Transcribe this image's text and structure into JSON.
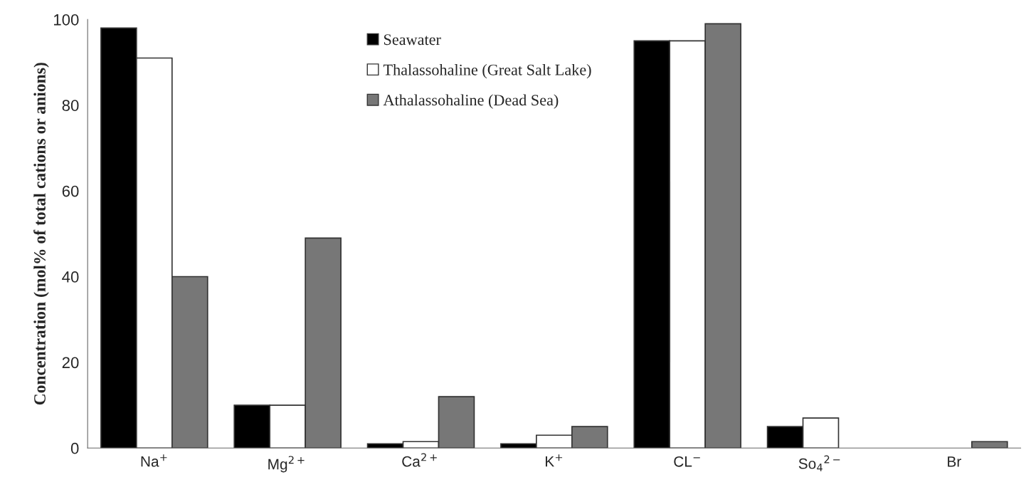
{
  "chart_data": {
    "type": "bar",
    "ylabel": "Concentration (mol% of total cations or anions)",
    "categories": [
      "Na$^{+}$",
      "Mg$^{2+}$",
      "Ca$^{2+}$",
      "K$^{+}$",
      "CL$^{−}$",
      "So$_{4}$$^{2−}$",
      "Br"
    ],
    "series": [
      {
        "name": "Seawater",
        "color": "#000000",
        "values": [
          98,
          10,
          1,
          1,
          95,
          5,
          null
        ]
      },
      {
        "name": "Thalassohaline (Great Salt Lake)",
        "color": "#ffffff",
        "values": [
          91,
          10,
          1.5,
          3,
          95,
          7,
          null
        ]
      },
      {
        "name": "Athalassohaline (Dead Sea)",
        "color": "#777777",
        "values": [
          40,
          49,
          12,
          5,
          99,
          null,
          1.5
        ]
      }
    ],
    "ylim": [
      0,
      100
    ],
    "yticks": [
      0,
      20,
      40,
      60,
      80,
      100
    ],
    "grid": false,
    "legend": "top"
  }
}
